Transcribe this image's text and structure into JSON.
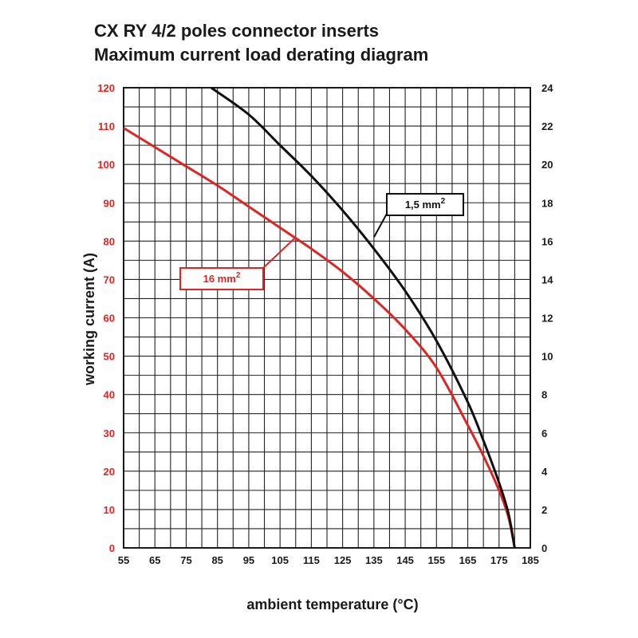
{
  "title": "CX RY 4/2 poles connector inserts",
  "subtitle": "Maximum current load derating diagram",
  "chart_data": {
    "type": "line",
    "title": "CX RY 4/2 poles connector inserts",
    "subtitle": "Maximum current load derating diagram",
    "xlabel": "ambient temperature (°C)",
    "ylabel": "working current (A)",
    "xlim": [
      55,
      185
    ],
    "ylim": [
      0,
      120
    ],
    "y2lim": [
      0,
      24
    ],
    "x_ticks": [
      "55",
      "65",
      "75",
      "85",
      "95",
      "105",
      "115",
      "125",
      "135",
      "145",
      "155",
      "165",
      "175",
      "185"
    ],
    "y_ticks": [
      "0",
      "10",
      "20",
      "30",
      "40",
      "50",
      "60",
      "70",
      "80",
      "90",
      "100",
      "110",
      "120"
    ],
    "y2_ticks": [
      "0",
      "2",
      "4",
      "6",
      "8",
      "10",
      "12",
      "14",
      "16",
      "18",
      "20",
      "22",
      "24"
    ],
    "grid": true,
    "series": [
      {
        "name": "16 mm",
        "superscript": "2",
        "color": "#e02424",
        "axis": "left",
        "x": [
          55,
          65,
          75,
          85,
          95,
          105,
          115,
          125,
          135,
          145,
          155,
          165,
          170,
          175,
          178,
          180
        ],
        "y": [
          109.5,
          104.5,
          99.5,
          94.5,
          89,
          83.5,
          78,
          72,
          65,
          57,
          47,
          32,
          24,
          15,
          8,
          0
        ]
      },
      {
        "name": "1,5 mm",
        "superscript": "2",
        "color": "#111111",
        "axis": "right",
        "x": [
          83,
          95,
          105,
          115,
          125,
          135,
          145,
          155,
          165,
          170,
          175,
          178,
          180
        ],
        "y": [
          24,
          22.6,
          21,
          19.4,
          17.6,
          15.6,
          13.4,
          10.8,
          7.6,
          5.6,
          3.4,
          1.8,
          0
        ]
      }
    ]
  }
}
